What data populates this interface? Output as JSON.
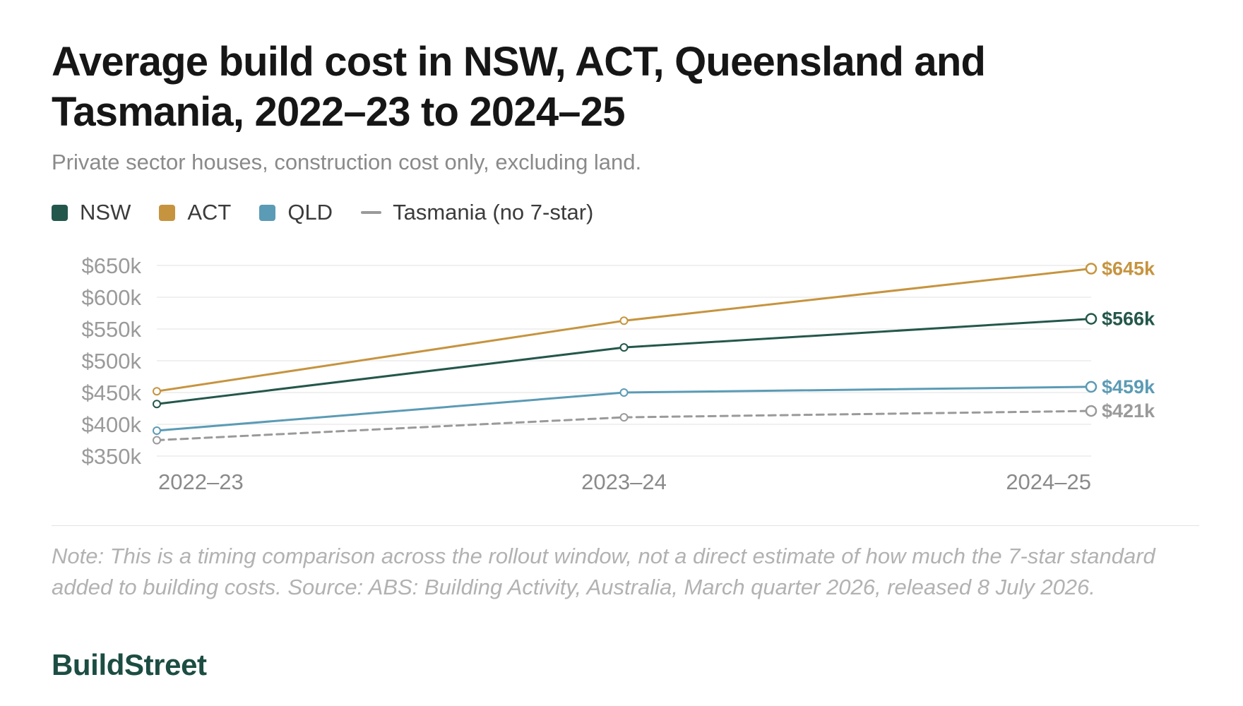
{
  "title": "Average build cost in NSW, ACT, Queensland and Tasmania, 2022–23 to 2024–25",
  "subtitle": "Private sector houses, construction cost only, excluding land.",
  "legend": [
    {
      "label": "NSW",
      "color": "#24574b",
      "style": "solid"
    },
    {
      "label": "ACT",
      "color": "#c6943f",
      "style": "solid"
    },
    {
      "label": "QLD",
      "color": "#5b9bb5",
      "style": "solid"
    },
    {
      "label": "Tasmania (no 7-star)",
      "color": "#9a9a9a",
      "style": "dashed"
    }
  ],
  "chart_data": {
    "type": "line",
    "x": [
      "2022–23",
      "2023–24",
      "2024–25"
    ],
    "y_ticks": [
      "$650k",
      "$600k",
      "$550k",
      "$500k",
      "$450k",
      "$400k",
      "$350k"
    ],
    "ylim": [
      350,
      650
    ],
    "y_unit": "$k",
    "grid": true,
    "legend_position": "top-left",
    "series": [
      {
        "name": "ACT",
        "values": [
          452,
          563,
          645
        ],
        "color": "#c6943f",
        "dashed": false,
        "end_label": "$645k"
      },
      {
        "name": "NSW",
        "values": [
          432,
          521,
          566
        ],
        "color": "#24574b",
        "dashed": false,
        "end_label": "$566k"
      },
      {
        "name": "QLD",
        "values": [
          390,
          450,
          459
        ],
        "color": "#5b9bb5",
        "dashed": false,
        "end_label": "$459k"
      },
      {
        "name": "Tasmania (no 7-star)",
        "values": [
          375,
          411,
          421
        ],
        "color": "#9a9a9a",
        "dashed": true,
        "end_label": "$421k"
      }
    ]
  },
  "note": "Note: This is a timing comparison across the rollout window, not a direct estimate of how much the 7-star standard added to building costs. Source: ABS: Building Activity, Australia, March quarter 2026, released 8 July 2026.",
  "brand": "BuildStreet"
}
